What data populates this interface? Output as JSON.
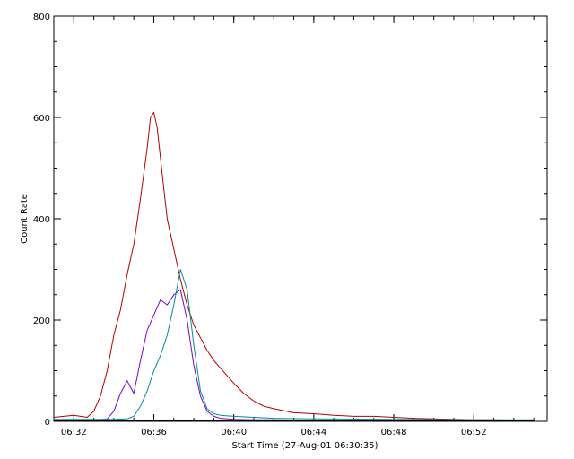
{
  "chart_data": {
    "type": "line",
    "title": "",
    "xlabel": "Start Time (27-Aug-01 06:30:35)",
    "ylabel": "Count Rate",
    "xlim": [
      "06:31:00",
      "06:55:40"
    ],
    "ylim": [
      0,
      800
    ],
    "x_ticks": [
      "06:32",
      "06:36",
      "06:40",
      "06:44",
      "06:48",
      "06:52"
    ],
    "y_ticks": [
      0,
      200,
      400,
      600,
      800
    ],
    "grid": false,
    "legend": "none",
    "series": [
      {
        "color": "#b40000",
        "x": [
          "06:31:00",
          "06:32:00",
          "06:32:40",
          "06:33:00",
          "06:33:20",
          "06:33:40",
          "06:34:00",
          "06:34:20",
          "06:34:40",
          "06:35:00",
          "06:35:20",
          "06:35:40",
          "06:35:50",
          "06:36:00",
          "06:36:10",
          "06:36:20",
          "06:36:30",
          "06:36:40",
          "06:37:00",
          "06:37:20",
          "06:37:40",
          "06:38:00",
          "06:38:20",
          "06:38:40",
          "06:39:00",
          "06:39:20",
          "06:39:40",
          "06:40:00",
          "06:40:30",
          "06:41:00",
          "06:41:30",
          "06:42:00",
          "06:43:00",
          "06:44:00",
          "06:45:00",
          "06:46:00",
          "06:47:00",
          "06:48:00",
          "06:49:00",
          "06:50:00",
          "06:51:00",
          "06:52:00",
          "06:53:00",
          "06:54:00",
          "06:55:00"
        ],
        "values": [
          8,
          12,
          8,
          20,
          50,
          100,
          170,
          220,
          290,
          350,
          440,
          540,
          600,
          610,
          580,
          520,
          460,
          400,
          340,
          280,
          230,
          190,
          165,
          140,
          120,
          105,
          90,
          75,
          55,
          40,
          30,
          25,
          17,
          15,
          12,
          10,
          10,
          8,
          6,
          5,
          4,
          3,
          3,
          2,
          2
        ]
      },
      {
        "color": "#7a00c8",
        "x": [
          "06:31:00",
          "06:32:00",
          "06:33:00",
          "06:33:40",
          "06:34:00",
          "06:34:20",
          "06:34:40",
          "06:35:00",
          "06:35:20",
          "06:35:40",
          "06:36:00",
          "06:36:20",
          "06:36:40",
          "06:37:00",
          "06:37:20",
          "06:37:40",
          "06:38:00",
          "06:38:20",
          "06:38:40",
          "06:39:00",
          "06:39:20",
          "06:40:00",
          "06:41:00",
          "06:42:00",
          "06:44:00",
          "06:48:00",
          "06:52:00",
          "06:55:00"
        ],
        "values": [
          2,
          2,
          2,
          5,
          20,
          55,
          80,
          55,
          120,
          180,
          210,
          240,
          230,
          250,
          260,
          200,
          110,
          50,
          20,
          10,
          6,
          4,
          3,
          3,
          2,
          2,
          2,
          2
        ]
      },
      {
        "color": "#008c9c",
        "x": [
          "06:31:00",
          "06:32:00",
          "06:33:00",
          "06:34:00",
          "06:34:40",
          "06:35:00",
          "06:35:20",
          "06:35:40",
          "06:36:00",
          "06:36:20",
          "06:36:40",
          "06:37:00",
          "06:37:20",
          "06:37:40",
          "06:38:00",
          "06:38:20",
          "06:38:40",
          "06:39:00",
          "06:39:20",
          "06:40:00",
          "06:41:00",
          "06:42:00",
          "06:44:00",
          "06:48:00",
          "06:52:00",
          "06:55:00"
        ],
        "values": [
          4,
          4,
          4,
          4,
          5,
          10,
          30,
          60,
          100,
          130,
          170,
          230,
          300,
          260,
          150,
          60,
          25,
          15,
          12,
          10,
          8,
          6,
          5,
          4,
          3,
          3
        ]
      },
      {
        "color": "#000000",
        "x": [
          "06:31:00",
          "06:55:00"
        ],
        "values": [
          1,
          1
        ]
      }
    ]
  }
}
